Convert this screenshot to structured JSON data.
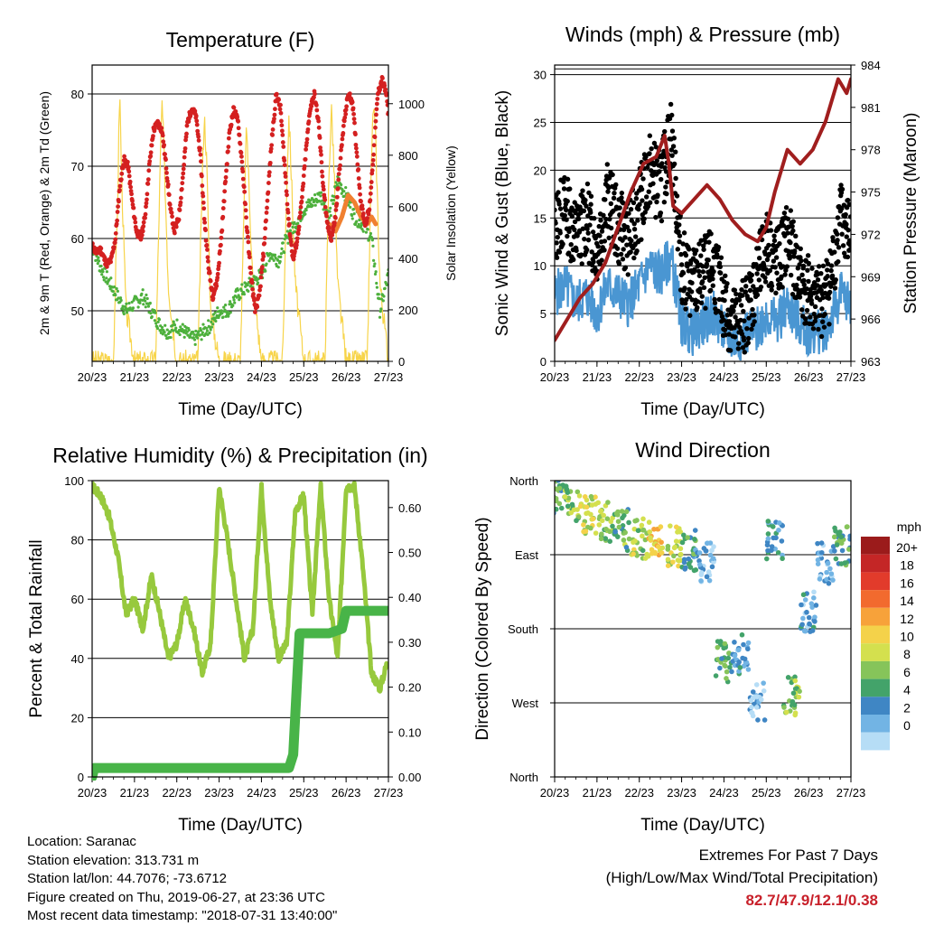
{
  "colors": {
    "temp_red": "#d42020",
    "temp_orange": "#f08030",
    "dewpoint_green": "#4db03c",
    "insolation_yellow": "#f7d44a",
    "wind_blue": "#4a96d2",
    "gust_black": "#000000",
    "pressure_maroon": "#a01e1e",
    "rh_lightgreen": "#97c93d",
    "precip_green": "#48b448",
    "extremes_red": "#c8202a"
  },
  "x_ticks": [
    "20/23",
    "21/23",
    "22/23",
    "23/23",
    "24/23",
    "25/23",
    "26/23",
    "27/23"
  ],
  "chart_data": [
    {
      "id": "temperature",
      "type": "line",
      "title": "Temperature (F)",
      "xlabel": "Time (Day/UTC)",
      "ylabel": "2m & 9m T (Red, Orange) & 2m Td (Green)",
      "ylabel_right": "Solar Insolation (Yellow)",
      "ylim": [
        43,
        84
      ],
      "yticks": [
        50,
        60,
        70,
        80
      ],
      "ylim_right": [
        0,
        1150
      ],
      "yticks_right": [
        0,
        200,
        400,
        600,
        800,
        1000
      ],
      "grid": true,
      "series": [
        {
          "axis": "left",
          "color": "temp_red",
          "x": [
            0,
            0.1,
            0.2,
            0.3,
            0.35,
            0.45,
            0.55,
            0.65,
            0.75,
            0.85,
            0.95,
            1.05,
            1.15,
            1.25,
            1.35,
            1.45,
            1.55,
            1.65,
            1.75,
            1.85,
            1.95,
            2.05,
            2.15,
            2.25,
            2.35,
            2.45,
            2.55,
            2.65,
            2.75,
            2.85,
            2.95,
            3.05,
            3.15,
            3.25,
            3.35,
            3.45,
            3.55,
            3.65,
            3.75,
            3.85,
            3.95,
            4.05,
            4.15,
            4.25,
            4.35,
            4.45,
            4.55,
            4.65,
            4.75,
            4.85,
            4.95,
            5.05,
            5.15,
            5.25,
            5.35,
            5.45,
            5.55,
            5.65,
            5.75,
            5.85,
            5.95,
            6.05,
            6.15,
            6.25,
            6.35,
            6.45,
            6.55,
            6.65,
            6.75,
            6.85,
            6.95,
            7.0
          ],
          "y": [
            59,
            58,
            58.5,
            57,
            56.5,
            57,
            60,
            67,
            71,
            70,
            65,
            61,
            60,
            63,
            70,
            75,
            76,
            75,
            70,
            64,
            61,
            63,
            69,
            76,
            78,
            77,
            72,
            63,
            56,
            52,
            54,
            60,
            68,
            75,
            78,
            76,
            70,
            62,
            55,
            50,
            52,
            58,
            66,
            74,
            80,
            78,
            70,
            62,
            57,
            60,
            65,
            72,
            78,
            80,
            76,
            68,
            62,
            60,
            63,
            70,
            76,
            80,
            79,
            72,
            65,
            62,
            64,
            72,
            80,
            82,
            80,
            77
          ]
        },
        {
          "axis": "left",
          "color": "temp_orange",
          "x": [
            5.6,
            5.75,
            5.9,
            6.05,
            6.2,
            6.35,
            6.5,
            6.6,
            6.7
          ],
          "y": [
            62,
            61,
            63,
            66,
            65,
            63,
            62,
            63,
            62
          ]
        },
        {
          "axis": "left",
          "color": "dewpoint_green",
          "x": [
            0,
            0.2,
            0.4,
            0.6,
            0.8,
            1.0,
            1.2,
            1.4,
            1.6,
            1.8,
            2.0,
            2.2,
            2.4,
            2.6,
            2.8,
            3.0,
            3.2,
            3.4,
            3.6,
            3.8,
            4.0,
            4.2,
            4.4,
            4.6,
            4.8,
            5.0,
            5.2,
            5.4,
            5.6,
            5.8,
            6.0,
            6.2,
            6.4,
            6.6,
            6.8,
            7.0
          ],
          "y": [
            59,
            56,
            54,
            52,
            50,
            51,
            52,
            50,
            48,
            47,
            48,
            47,
            46,
            47,
            48,
            50,
            50,
            52,
            53,
            54,
            55,
            58,
            57,
            60,
            62,
            64,
            65,
            66,
            63,
            68,
            66,
            63,
            62,
            60,
            50,
            55
          ]
        },
        {
          "axis": "right",
          "color": "insolation_yellow",
          "x": [
            0,
            0.5,
            0.6,
            0.65,
            0.7,
            0.8,
            1.0,
            1.5,
            1.6,
            1.65,
            1.7,
            1.8,
            2.0,
            2.5,
            2.6,
            2.65,
            2.7,
            2.8,
            3.0,
            3.5,
            3.6,
            3.65,
            3.7,
            3.8,
            4.0,
            4.5,
            4.6,
            4.65,
            4.7,
            4.8,
            5.0,
            5.5,
            5.6,
            5.65,
            5.7,
            5.8,
            6.0,
            6.5,
            6.6,
            6.65,
            6.7,
            6.8,
            7.0
          ],
          "y": [
            0,
            0,
            600,
            1060,
            700,
            200,
            0,
            0,
            700,
            1010,
            800,
            300,
            0,
            0,
            700,
            960,
            800,
            200,
            0,
            0,
            650,
            920,
            700,
            300,
            0,
            0,
            700,
            960,
            750,
            300,
            0,
            0,
            750,
            990,
            820,
            300,
            0,
            0,
            800,
            1000,
            850,
            300,
            0
          ]
        }
      ]
    },
    {
      "id": "winds_pressure",
      "type": "scatter",
      "title": "Winds (mph) & Pressure (mb)",
      "xlabel": "Time (Day/UTC)",
      "ylabel": "Sonic Wind & Gust (Blue, Black)",
      "ylabel_right": "Station Pressure (Maroon)",
      "ylim": [
        0,
        31
      ],
      "yticks": [
        0,
        5,
        10,
        15,
        20,
        25,
        30
      ],
      "ylim_right": [
        963,
        984
      ],
      "yticks_right": [
        963,
        966,
        969,
        972,
        975,
        978,
        981,
        984
      ],
      "grid": true,
      "series": [
        {
          "axis": "left",
          "color": "gust_black",
          "x": [
            0,
            0.25,
            0.5,
            0.75,
            1.0,
            1.25,
            1.5,
            1.75,
            2.0,
            2.25,
            2.5,
            2.75,
            3.0,
            3.25,
            3.5,
            3.75,
            4.0,
            4.25,
            4.5,
            4.75,
            5.0,
            5.25,
            5.5,
            5.75,
            6.0,
            6.25,
            6.5,
            6.75,
            7.0
          ],
          "y": [
            14,
            16,
            13,
            15,
            12,
            17,
            14,
            13,
            16,
            20,
            18,
            24,
            10,
            8,
            9,
            10,
            6,
            4,
            5,
            8,
            12,
            10,
            13,
            9,
            7,
            6,
            8,
            15,
            13
          ]
        },
        {
          "axis": "left",
          "color": "wind_blue",
          "x": [
            0,
            0.25,
            0.5,
            0.75,
            1.0,
            1.25,
            1.5,
            1.75,
            2.0,
            2.25,
            2.5,
            2.75,
            3.0,
            3.25,
            3.5,
            3.75,
            4.0,
            4.25,
            4.5,
            4.75,
            5.0,
            5.25,
            5.5,
            5.75,
            6.0,
            6.25,
            6.5,
            6.75,
            7.0
          ],
          "y": [
            7,
            8,
            6,
            7,
            5,
            8,
            7,
            6,
            8,
            10,
            9,
            11,
            4,
            3,
            4,
            5,
            3,
            2,
            3,
            3,
            5,
            4,
            6,
            4,
            3,
            3,
            4,
            7,
            6
          ]
        },
        {
          "axis": "right",
          "color": "pressure_maroon",
          "x": [
            0,
            0.3,
            0.6,
            0.9,
            1.2,
            1.5,
            1.8,
            2.1,
            2.4,
            2.6,
            2.7,
            2.8,
            3.0,
            3.3,
            3.6,
            3.9,
            4.2,
            4.5,
            4.8,
            5.0,
            5.2,
            5.5,
            5.8,
            6.1,
            6.4,
            6.7,
            6.9,
            7.0
          ],
          "y": [
            964.5,
            966,
            967.5,
            968.5,
            970,
            972.5,
            975,
            977,
            977.5,
            979,
            977,
            974,
            973.5,
            974.5,
            975.5,
            974.5,
            973,
            972,
            971.5,
            972.5,
            975,
            978,
            977,
            978,
            980,
            983,
            982,
            983
          ]
        }
      ]
    },
    {
      "id": "humidity_precip",
      "type": "line",
      "title": "Relative Humidity (%) & Precipitation (in)",
      "xlabel": "Time (Day/UTC)",
      "ylabel": "Percent & Total Rainfall",
      "ylim": [
        0,
        100
      ],
      "yticks": [
        0,
        20,
        40,
        60,
        80,
        100
      ],
      "ylim_right": [
        0,
        0.66
      ],
      "yticks_right": [
        "0.00",
        "0.10",
        "0.20",
        "0.30",
        "0.40",
        "0.50",
        "0.60"
      ],
      "grid": true,
      "series": [
        {
          "axis": "left",
          "color": "rh_lightgreen",
          "x": [
            0,
            0.2,
            0.4,
            0.6,
            0.8,
            1.0,
            1.2,
            1.4,
            1.6,
            1.8,
            2.0,
            2.2,
            2.4,
            2.6,
            2.8,
            3.0,
            3.2,
            3.4,
            3.6,
            3.8,
            4.0,
            4.2,
            4.4,
            4.6,
            4.8,
            5.0,
            5.2,
            5.4,
            5.6,
            5.8,
            6.0,
            6.2,
            6.4,
            6.6,
            6.8,
            7.0
          ],
          "y": [
            98,
            95,
            88,
            75,
            55,
            60,
            50,
            68,
            55,
            40,
            45,
            60,
            50,
            35,
            45,
            98,
            80,
            60,
            40,
            50,
            98,
            60,
            40,
            45,
            90,
            95,
            55,
            98,
            60,
            40,
            98,
            98,
            70,
            35,
            30,
            40
          ]
        },
        {
          "axis": "right",
          "color": "precip_green",
          "x": [
            0,
            0.05,
            4.65,
            4.75,
            4.9,
            5.5,
            5.6,
            5.9,
            6.0,
            7.0
          ],
          "y": [
            0,
            0.02,
            0.02,
            0.05,
            0.32,
            0.32,
            0.32,
            0.33,
            0.37,
            0.37
          ]
        }
      ]
    },
    {
      "id": "wind_direction",
      "type": "scatter",
      "title": "Wind Direction",
      "xlabel": "Time (Day/UTC)",
      "ylabel": "Direction (Colored By Speed)",
      "yticks": [
        "North",
        "West",
        "South",
        "East",
        "North"
      ],
      "ylim": [
        0,
        360
      ],
      "grid": true,
      "colorbar": {
        "title": "mph",
        "labels": [
          "20+",
          "18",
          "16",
          "14",
          "12",
          "10",
          "8",
          "6",
          "4",
          "2",
          "0"
        ],
        "colors": [
          "#9b1b1b",
          "#c42626",
          "#e23b2b",
          "#f26a2e",
          "#f7a23a",
          "#f4d24a",
          "#d4e04e",
          "#86c45a",
          "#43a36a",
          "#3f86c4",
          "#72b4e4",
          "#b6ddf6"
        ]
      },
      "x": [
        0.1,
        0.4,
        0.8,
        1.2,
        1.6,
        2.0,
        2.4,
        2.8,
        3.2,
        3.6,
        4.0,
        4.4,
        4.8,
        5.2,
        5.6,
        6.0,
        6.4,
        6.8
      ],
      "y": [
        345,
        335,
        320,
        310,
        300,
        290,
        285,
        280,
        275,
        260,
        140,
        150,
        90,
        290,
        100,
        200,
        260,
        280
      ],
      "speed": [
        6,
        8,
        10,
        8,
        7,
        9,
        12,
        10,
        5,
        2,
        6,
        3,
        2,
        4,
        8,
        3,
        2,
        6
      ]
    }
  ],
  "info": {
    "location": "Location: Saranac",
    "elevation": "Station elevation: 313.731 m",
    "latlon": "Station lat/lon: 44.7076; -73.6712",
    "created": "Figure created on Thu, 2019-06-27, at 23:36 UTC",
    "recent": "Most recent data timestamp: \"2018-07-31 13:40:00\""
  },
  "extremes": {
    "title": "Extremes For Past 7 Days",
    "subtitle": "(High/Low/Max Wind/Total Precipitation)",
    "values": "82.7/47.9/12.1/0.38"
  }
}
